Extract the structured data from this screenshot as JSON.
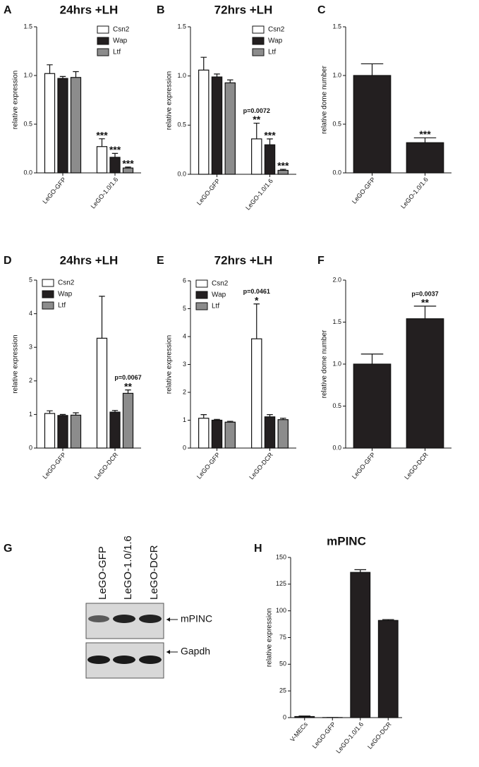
{
  "chart_data": [
    {
      "type": "bar",
      "label": "A",
      "title": "24hrs +LH",
      "ylabel": "relative expression",
      "legend": "upper right",
      "categories": [
        "LeGO-GFP",
        "LeGO-1.0/1.6"
      ],
      "series": [
        {
          "name": "Csn2",
          "color": "#ffffff",
          "values": [
            1.02,
            0.27
          ],
          "errors": [
            0.09,
            0.08
          ]
        },
        {
          "name": "Wap",
          "color": "#231f20",
          "values": [
            0.97,
            0.16
          ],
          "errors": [
            0.02,
            0.04
          ]
        },
        {
          "name": "Ltf",
          "color": "#8c8c8c",
          "values": [
            0.98,
            0.05
          ],
          "errors": [
            0.06,
            0.01
          ]
        }
      ],
      "ylim": [
        0,
        1.5
      ],
      "yticks": [
        {
          "value": 0,
          "label": "0.0"
        },
        0.5,
        {
          "value": 1,
          "label": "1.0"
        },
        1.5
      ],
      "annotations": [
        {
          "text": "***",
          "category": 1,
          "series": 0
        },
        {
          "text": "***",
          "category": 1,
          "series": 1
        },
        {
          "text": "***",
          "category": 1,
          "series": 2
        }
      ]
    },
    {
      "type": "bar",
      "label": "B",
      "title": "72hrs +LH",
      "ylabel": "relative expression",
      "legend": "upper right",
      "categories": [
        "LeGO-GFP",
        "LeGO-1.0/1.6"
      ],
      "series": [
        {
          "name": "Csn2",
          "color": "#ffffff",
          "values": [
            1.06,
            0.36
          ],
          "errors": [
            0.13,
            0.16
          ]
        },
        {
          "name": "Wap",
          "color": "#231f20",
          "values": [
            0.99,
            0.3
          ],
          "errors": [
            0.03,
            0.06
          ]
        },
        {
          "name": "Ltf",
          "color": "#8c8c8c",
          "values": [
            0.93,
            0.04
          ],
          "errors": [
            0.03,
            0.01
          ]
        }
      ],
      "ylim": [
        0,
        1.5
      ],
      "yticks": [
        {
          "value": 0,
          "label": "0.0"
        },
        0.5,
        {
          "value": 1,
          "label": "1.0"
        },
        1.5
      ],
      "annotations": [
        {
          "text": "**",
          "category": 1,
          "series": 0
        },
        {
          "text": "p=0.0072",
          "category": 1,
          "series": 0
        },
        {
          "text": "***",
          "category": 1,
          "series": 1
        },
        {
          "text": "***",
          "category": 1,
          "series": 2
        }
      ]
    },
    {
      "type": "bar",
      "label": "C",
      "ylabel": "relative dome number",
      "color": "#231f20",
      "categories": [
        "LeGO-GFP",
        "LeGO-1.0/1.6"
      ],
      "values": [
        1.0,
        0.31
      ],
      "errors": [
        0.12,
        0.05
      ],
      "ylim": [
        0,
        1.5
      ],
      "yticks": [
        {
          "value": 0,
          "label": "0.0"
        },
        0.5,
        {
          "value": 1,
          "label": "1.0"
        },
        1.5
      ],
      "annotations": [
        {
          "text": "***",
          "category": 1
        }
      ]
    },
    {
      "type": "bar",
      "label": "D",
      "title": "24hrs +LH",
      "ylabel": "relative expression",
      "legend": "upper left",
      "categories": [
        "LeGO-GFP",
        "LeGO-DCR"
      ],
      "series": [
        {
          "name": "Csn2",
          "color": "#ffffff",
          "values": [
            1.03,
            3.27
          ],
          "errors": [
            0.08,
            1.25
          ]
        },
        {
          "name": "Wap",
          "color": "#231f20",
          "values": [
            0.97,
            1.07
          ],
          "errors": [
            0.03,
            0.05
          ]
        },
        {
          "name": "Ltf",
          "color": "#8c8c8c",
          "values": [
            0.98,
            1.63
          ],
          "errors": [
            0.07,
            0.1
          ]
        }
      ],
      "ylim": [
        0,
        5
      ],
      "yticks": [
        0,
        1,
        2,
        3,
        4,
        5
      ],
      "annotations": [
        {
          "text": "**",
          "category": 1,
          "series": 2
        },
        {
          "text": "p=0.0067",
          "category": 1,
          "series": 2
        }
      ]
    },
    {
      "type": "bar",
      "label": "E",
      "title": "72hrs +LH",
      "ylabel": "relative expression",
      "legend": "upper left",
      "categories": [
        "LeGO-GFP",
        "LeGO-DCR"
      ],
      "series": [
        {
          "name": "Csn2",
          "color": "#ffffff",
          "values": [
            1.07,
            3.92
          ],
          "errors": [
            0.13,
            1.25
          ]
        },
        {
          "name": "Wap",
          "color": "#231f20",
          "values": [
            1.0,
            1.12
          ],
          "errors": [
            0.03,
            0.08
          ]
        },
        {
          "name": "Ltf",
          "color": "#8c8c8c",
          "values": [
            0.93,
            1.02
          ],
          "errors": [
            0.03,
            0.05
          ]
        }
      ],
      "ylim": [
        0,
        6
      ],
      "yticks": [
        0,
        1,
        2,
        3,
        4,
        5,
        6
      ],
      "annotations": [
        {
          "text": "*",
          "category": 1,
          "series": 0
        },
        {
          "text": "p=0.0461",
          "category": 1,
          "series": 0
        }
      ]
    },
    {
      "type": "bar",
      "label": "F",
      "ylabel": "relative dome number",
      "color": "#231f20",
      "categories": [
        "LeGO-GFP",
        "LeGO-DCR"
      ],
      "values": [
        1.0,
        1.54
      ],
      "errors": [
        0.12,
        0.15
      ],
      "ylim": [
        0,
        2
      ],
      "yticks": [
        {
          "value": 0,
          "label": "0.0"
        },
        0.5,
        {
          "value": 1,
          "label": "1.0"
        },
        1.5,
        {
          "value": 2,
          "label": "2.0"
        }
      ],
      "annotations": [
        {
          "text": "**",
          "category": 1
        },
        {
          "text": "p=0.0037",
          "category": 1
        }
      ]
    },
    {
      "type": "bar",
      "label": "H",
      "title": "mPINC",
      "ylabel": "relative expression",
      "color": "#231f20",
      "categories": [
        "V-MECs",
        "LeGO-GFP",
        "LeGO-1.0/1.6",
        "LeGO-DCR"
      ],
      "values": [
        1,
        0.1,
        136,
        91
      ],
      "errors": [
        0.5,
        0,
        2.5,
        0.8
      ],
      "ylim": [
        0,
        150
      ],
      "yticks": [
        0,
        25,
        50,
        75,
        100,
        125,
        150
      ]
    }
  ],
  "gel": {
    "label": "G",
    "lanes": [
      "LeGO-GFP",
      "LeGO-1.0/1.6",
      "LeGO-DCR"
    ],
    "bands": [
      "mPINC",
      "Gapdh"
    ]
  }
}
